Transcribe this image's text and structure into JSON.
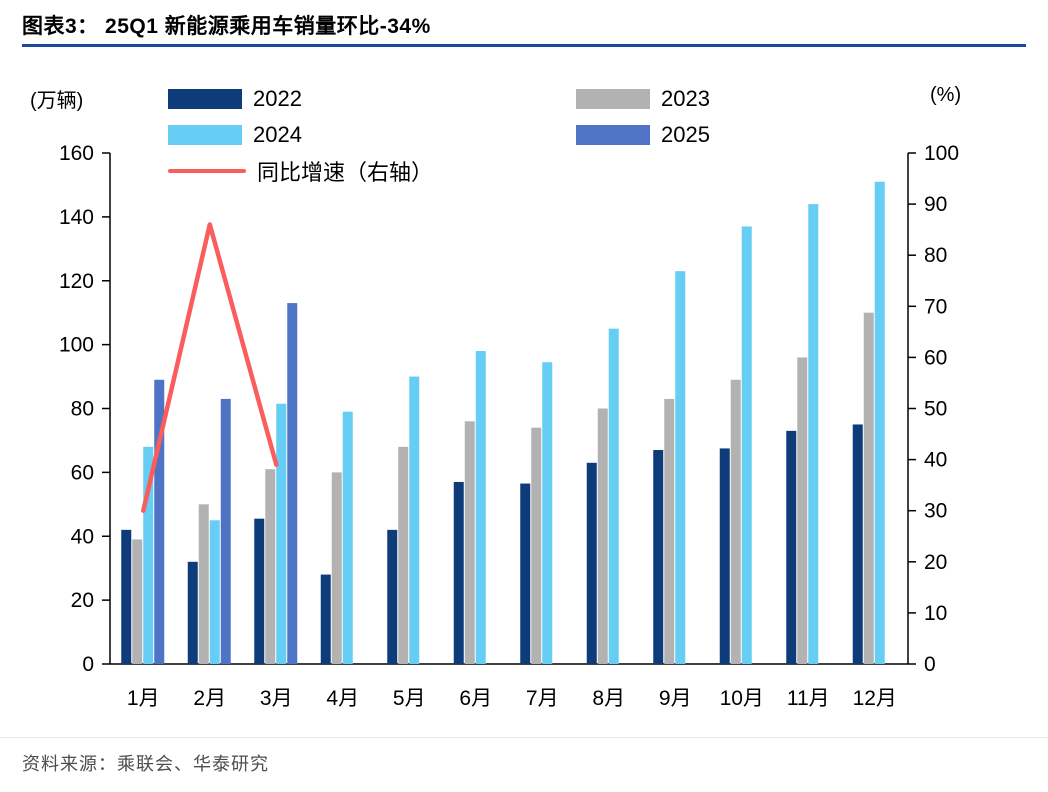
{
  "header": {
    "title": "图表3：  25Q1 新能源乘用车销量环比-34%"
  },
  "footer": {
    "source": "资料来源：乘联会、华泰研究"
  },
  "chart_data": {
    "type": "bar",
    "title": "25Q1 新能源乘用车销量环比-34%",
    "grid": false,
    "legend_position": "top-left-inside",
    "left_axis": {
      "unit": "(万辆)",
      "min": 0,
      "max": 160,
      "step": 20
    },
    "right_axis": {
      "unit": "(%)",
      "min": 0,
      "max": 100,
      "step": 10
    },
    "categories": [
      "1月",
      "2月",
      "3月",
      "4月",
      "5月",
      "6月",
      "7月",
      "8月",
      "9月",
      "10月",
      "11月",
      "12月"
    ],
    "series": [
      {
        "name": "2022",
        "color": "#0E3C7B",
        "values": [
          42,
          32,
          45.5,
          28,
          42,
          57,
          56.5,
          63,
          67,
          67.5,
          73,
          75
        ]
      },
      {
        "name": "2023",
        "color": "#B2B2B2",
        "values": [
          39,
          50,
          61,
          60,
          68,
          76,
          74,
          80,
          83,
          89,
          96,
          110
        ]
      },
      {
        "name": "2024",
        "color": "#66CDF4",
        "values": [
          68,
          45,
          81.5,
          79,
          90,
          98,
          94.5,
          105,
          123,
          137,
          144,
          151
        ]
      },
      {
        "name": "2025",
        "color": "#4F74C5",
        "values": [
          89,
          83,
          113,
          null,
          null,
          null,
          null,
          null,
          null,
          null,
          null,
          null
        ]
      }
    ],
    "line_series": {
      "name": "同比增速（右轴）",
      "color": "#FB5D5D",
      "axis": "right",
      "values": [
        30,
        86,
        39,
        null,
        null,
        null,
        null,
        null,
        null,
        null,
        null,
        null
      ]
    }
  }
}
